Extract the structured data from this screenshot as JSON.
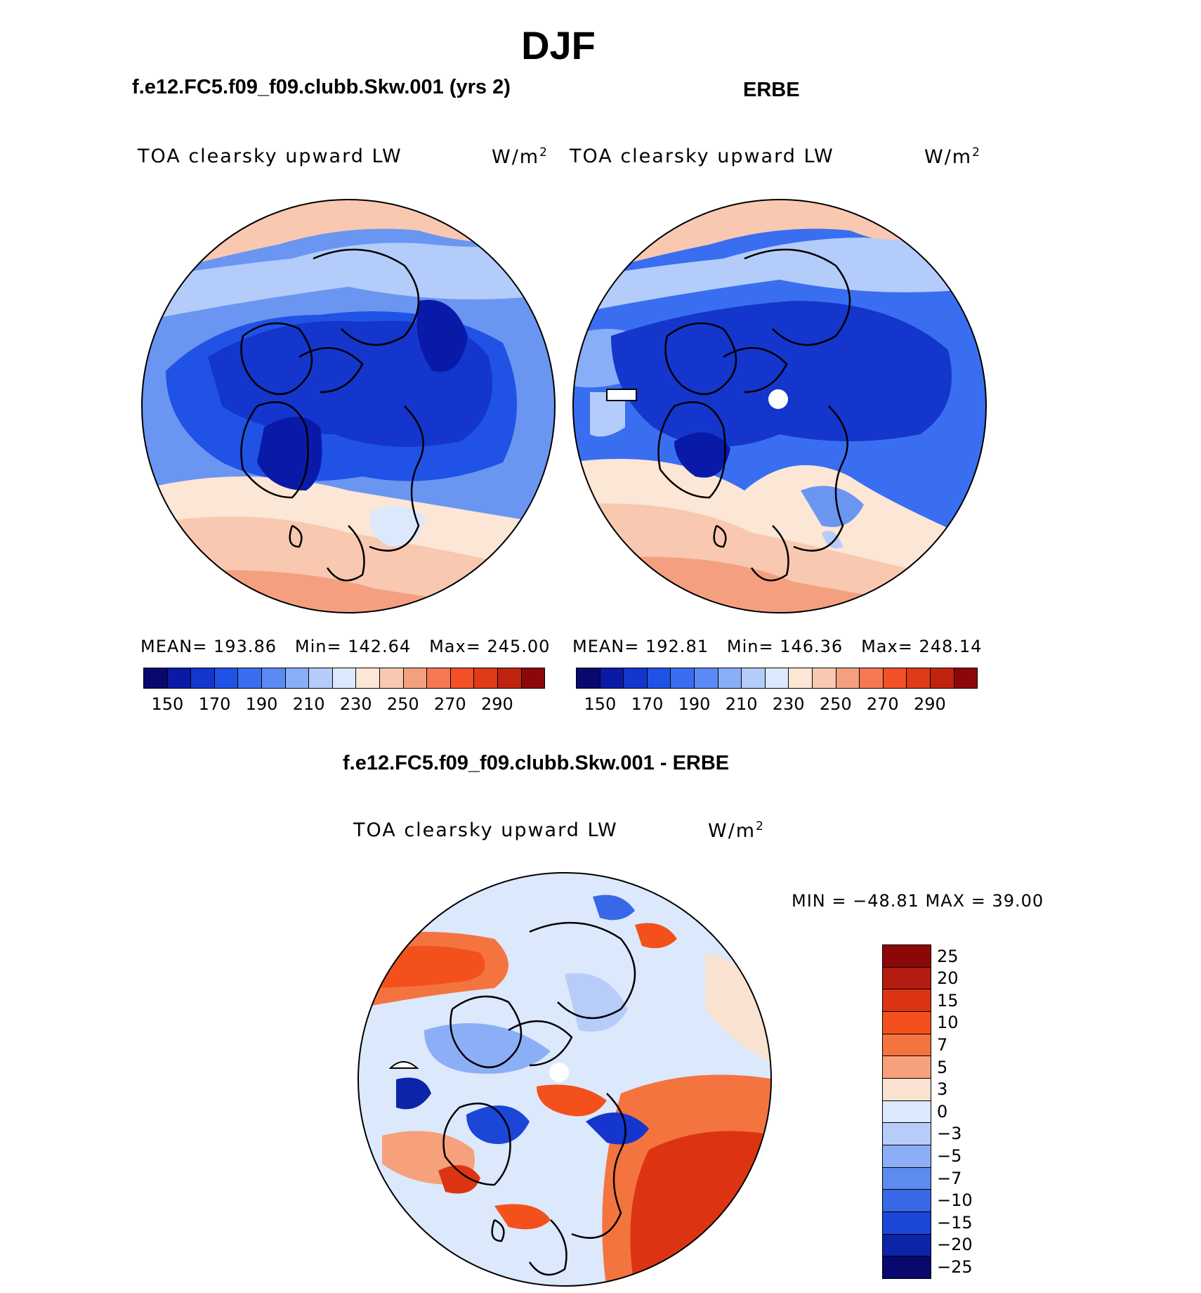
{
  "figure": {
    "season": "DJF",
    "model_title": "f.e12.FC5.f09_f09.clubb.Skw.001 (yrs 2)",
    "obs_title": "ERBE",
    "diff_title": "f.e12.FC5.f09_f09.clubb.Skw.001 - ERBE"
  },
  "panels": [
    {
      "variable": "TOA clearsky upward LW",
      "units": "W/m",
      "units_sup": "2",
      "mean_label": "MEAN=",
      "mean_value": "193.86",
      "min_label": "Min=",
      "min_value": "142.64",
      "max_label": "Max=",
      "max_value": "245.00"
    },
    {
      "variable": "TOA clearsky upward LW",
      "units": "W/m",
      "units_sup": "2",
      "mean_label": "MEAN=",
      "mean_value": "192.81",
      "min_label": "Min=",
      "min_value": "146.36",
      "max_label": "Max=",
      "max_value": "248.14"
    },
    {
      "variable": "TOA clearsky upward LW",
      "units": "W/m",
      "units_sup": "2",
      "minmax_text": "MIN = −48.81 MAX =   39.00"
    }
  ],
  "abs_colorbar": {
    "colors": [
      "#08086e",
      "#0a1aa8",
      "#1436cc",
      "#2052e6",
      "#3a6ef0",
      "#5a8af4",
      "#88aef8",
      "#b4ccfa",
      "#dce8fc",
      "#fce6d6",
      "#f8c8b0",
      "#f4a080",
      "#f47850",
      "#f45028",
      "#e03a18",
      "#c02410",
      "#8c0808"
    ],
    "ticks": [
      "150",
      "170",
      "190",
      "210",
      "230",
      "250",
      "270",
      "290"
    ]
  },
  "diff_colorbar": {
    "colors": [
      "#8c0808",
      "#b41c10",
      "#dc3412",
      "#f4501c",
      "#f47440",
      "#f6a07c",
      "#fae2d0",
      "#dce8fc",
      "#b8ccfa",
      "#8caef6",
      "#5c8cf0",
      "#3868e8",
      "#1c46d6",
      "#0c24a8",
      "#08086e"
    ],
    "ticks": [
      "25",
      "20",
      "15",
      "10",
      "7",
      "5",
      "3",
      "0",
      "−3",
      "−5",
      "−7",
      "−10",
      "−15",
      "−20",
      "−25"
    ]
  },
  "icons": [
    "polar-stereographic-map"
  ]
}
